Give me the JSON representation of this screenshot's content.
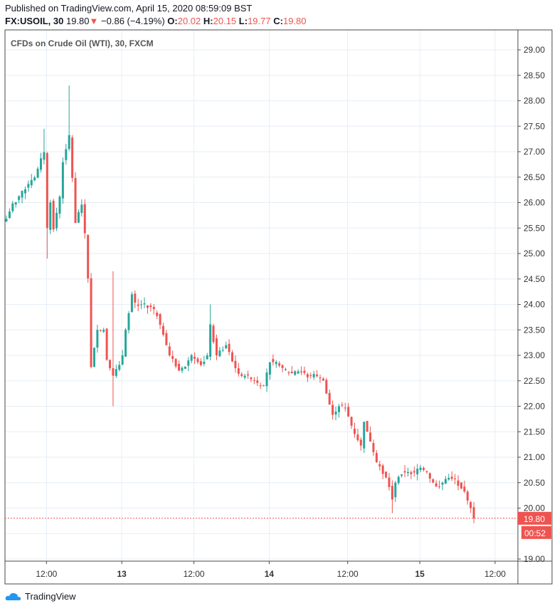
{
  "header": {
    "published": "Published on TradingView.com, April 15, 2020 08:59:09 BST",
    "symbol": "FX:USOIL, 30",
    "last": "19.80",
    "change": "−0.86 (−4.19%)",
    "o_label": "O:",
    "o": "20.02",
    "h_label": "H:",
    "h": "20.15",
    "l_label": "L:",
    "l": "19.77",
    "c_label": "C:",
    "c": "19.80"
  },
  "footer": {
    "brand": "TradingView"
  },
  "colors": {
    "up": "#26a69a",
    "down": "#ef5350",
    "grid": "#e6eef6",
    "axis": "#4a4a4a"
  },
  "chart_data": {
    "type": "candlestick",
    "title": "CFDs on Crude Oil (WTI), 30, FXCM",
    "interval_minutes": 30,
    "ylim": [
      18.8,
      29.4
    ],
    "y_ticks": [
      "29.00",
      "28.50",
      "28.00",
      "27.50",
      "27.00",
      "26.50",
      "26.00",
      "25.50",
      "25.00",
      "24.50",
      "24.00",
      "23.50",
      "23.00",
      "22.50",
      "22.00",
      "21.50",
      "21.00",
      "20.50",
      "20.00",
      "19.00"
    ],
    "x_ticks": [
      {
        "bar": 13,
        "label": "12:00"
      },
      {
        "bar": 37,
        "label": "13",
        "bold": true
      },
      {
        "bar": 60,
        "label": "12:00"
      },
      {
        "bar": 84,
        "label": "14",
        "bold": true
      },
      {
        "bar": 109,
        "label": "12:00"
      },
      {
        "bar": 132,
        "label": "15",
        "bold": true
      },
      {
        "bar": 156,
        "label": "12:00"
      }
    ],
    "last_price": "19.80",
    "countdown": "00:52",
    "close_anchors": [
      [
        0,
        25.7
      ],
      [
        2,
        25.95
      ],
      [
        6,
        26.3
      ],
      [
        9,
        26.5
      ],
      [
        12,
        27.0
      ],
      [
        13,
        25.5
      ],
      [
        14,
        26.0
      ],
      [
        15,
        25.5
      ],
      [
        17,
        26.1
      ],
      [
        18,
        26.8
      ],
      [
        20,
        27.3
      ],
      [
        21,
        26.5
      ],
      [
        22,
        25.6
      ],
      [
        24,
        26.0
      ],
      [
        25,
        25.4
      ],
      [
        26,
        24.5
      ],
      [
        27,
        22.8
      ],
      [
        29,
        23.5
      ],
      [
        31,
        23.5
      ],
      [
        32,
        22.9
      ],
      [
        34,
        22.6
      ],
      [
        35,
        22.7
      ],
      [
        37,
        23.0
      ],
      [
        38,
        23.5
      ],
      [
        40,
        24.2
      ],
      [
        41,
        24.0
      ],
      [
        43,
        24.0
      ],
      [
        46,
        23.95
      ],
      [
        48,
        23.8
      ],
      [
        50,
        23.4
      ],
      [
        52,
        23.0
      ],
      [
        55,
        22.7
      ],
      [
        57,
        22.8
      ],
      [
        59,
        23.0
      ],
      [
        62,
        22.8
      ],
      [
        64,
        23.0
      ],
      [
        65,
        23.6
      ],
      [
        67,
        23.0
      ],
      [
        70,
        23.2
      ],
      [
        72,
        22.9
      ],
      [
        74,
        22.6
      ],
      [
        76,
        22.6
      ],
      [
        79,
        22.5
      ],
      [
        81,
        22.4
      ],
      [
        82,
        22.4
      ],
      [
        84,
        22.9
      ],
      [
        87,
        22.8
      ],
      [
        89,
        22.7
      ],
      [
        91,
        22.65
      ],
      [
        93,
        22.7
      ],
      [
        96,
        22.6
      ],
      [
        99,
        22.6
      ],
      [
        101,
        22.5
      ],
      [
        104,
        21.8
      ],
      [
        106,
        22.0
      ],
      [
        108,
        22.0
      ],
      [
        110,
        21.6
      ],
      [
        113,
        21.2
      ],
      [
        114,
        21.7
      ],
      [
        116,
        21.3
      ],
      [
        118,
        20.9
      ],
      [
        121,
        20.6
      ],
      [
        123,
        20.2
      ],
      [
        124,
        20.5
      ],
      [
        126,
        20.7
      ],
      [
        130,
        20.7
      ],
      [
        132,
        20.8
      ],
      [
        134,
        20.7
      ],
      [
        137,
        20.4
      ],
      [
        139,
        20.5
      ],
      [
        141,
        20.6
      ],
      [
        143,
        20.55
      ],
      [
        146,
        20.3
      ],
      [
        148,
        20.0
      ],
      [
        149,
        19.8
      ]
    ],
    "notable_wicks": [
      {
        "bar": 13,
        "low": 24.9
      },
      {
        "bar": 12,
        "high": 27.45
      },
      {
        "bar": 20,
        "high": 28.3
      },
      {
        "bar": 34,
        "high": 24.65,
        "low": 22.0
      },
      {
        "bar": 65,
        "high": 24.0
      },
      {
        "bar": 123,
        "low": 19.9
      }
    ]
  }
}
